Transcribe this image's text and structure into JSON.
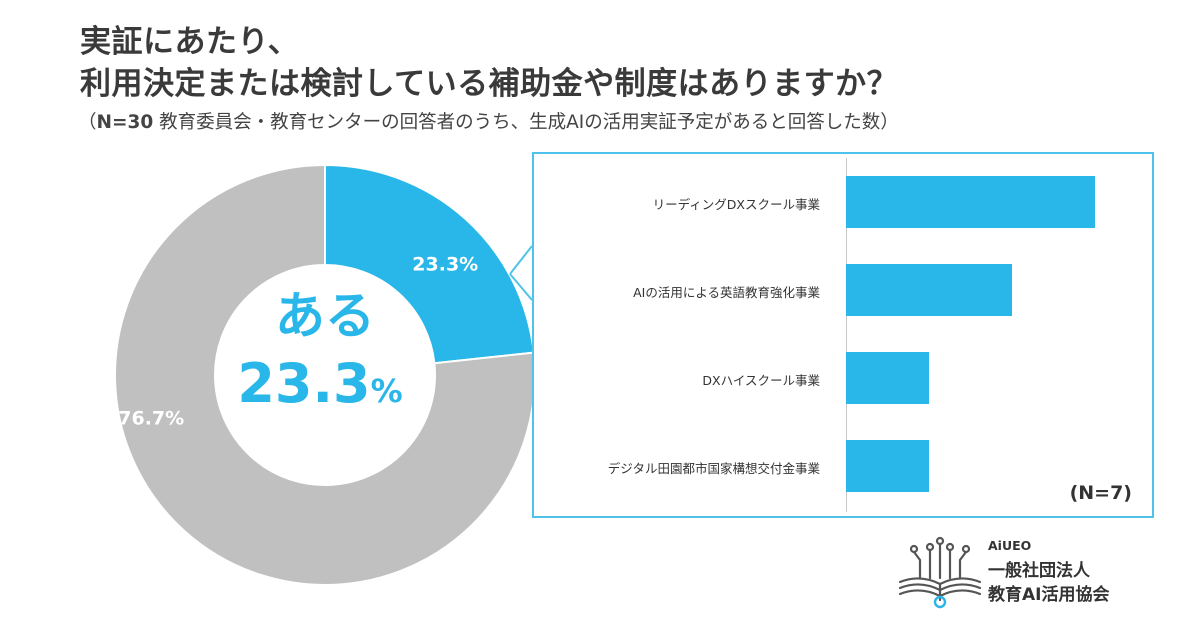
{
  "header": {
    "title_line1": "実証にあたり、",
    "title_line2": "利用決定または検討している補助金や制度はありますか？",
    "subtitle_open": "（",
    "subtitle_n": "N=30",
    "subtitle_rest": " 教育委員会・教育センターの回答者のうち、生成AIの活用実証予定があると回答した数）"
  },
  "chart_data": [
    {
      "type": "pie",
      "slices": [
        {
          "label": "ある",
          "value": 23.3,
          "text": "23.3%",
          "color": "#29b6e8"
        },
        {
          "label": "",
          "value": 76.7,
          "text": "76.7%",
          "color": "#c0c0c0"
        }
      ],
      "center_label": "ある",
      "center_value": "23.3",
      "center_unit": "%"
    },
    {
      "type": "bar",
      "orientation": "horizontal",
      "categories": [
        "リーディングDXスクール事業",
        "AIの活用による英語教育強化事業",
        "DXハイスクール事業",
        "デジタル田園都市国家構想交付金事業"
      ],
      "values": [
        3,
        2,
        1,
        1
      ],
      "xlim": [
        0,
        3.5
      ],
      "n_label": "(N=7)",
      "color": "#29b6e8"
    }
  ],
  "logo": {
    "brand": "AiUEO",
    "line1": "一般社団法人",
    "line2": "教育AI活用協会",
    "icon": "book-circuit-icon"
  }
}
